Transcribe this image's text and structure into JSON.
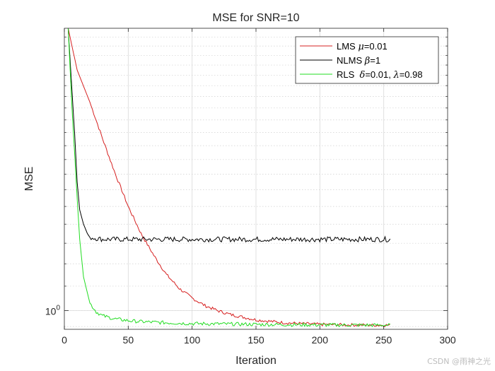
{
  "chart_data": {
    "type": "line",
    "title": "MSE for SNR=10",
    "xlabel": "Iteration",
    "ylabel": "MSE",
    "xlim": [
      0,
      300
    ],
    "x_ticks": [
      0,
      50,
      100,
      150,
      200,
      250,
      300
    ],
    "y_scale": "log",
    "ylim": [
      0.93,
      3.0
    ],
    "y_tick_label": {
      "base": "10",
      "exp": "0",
      "value": 1
    },
    "grid": true,
    "legend_position": "top-right",
    "series": [
      {
        "name": "LMS",
        "legend": {
          "prefix": "LMS ",
          "symbol": "μ",
          "rest": "=0.01"
        },
        "color": "#d62020",
        "x": [
          3,
          10,
          20,
          30,
          40,
          50,
          60,
          70,
          80,
          90,
          100,
          110,
          120,
          130,
          140,
          150,
          160,
          170,
          180,
          190,
          200,
          210,
          220,
          230,
          240,
          255
        ],
        "y": [
          3.0,
          2.55,
          2.25,
          1.95,
          1.7,
          1.5,
          1.35,
          1.24,
          1.15,
          1.09,
          1.05,
          1.02,
          1.0,
          0.985,
          0.975,
          0.965,
          0.96,
          0.955,
          0.952,
          0.95,
          0.948,
          0.947,
          0.946,
          0.946,
          0.945,
          0.945
        ]
      },
      {
        "name": "NLMS",
        "legend": {
          "prefix": "NLMS ",
          "symbol": "β",
          "rest": "=1"
        },
        "color": "#000000",
        "x": [
          3,
          5,
          8,
          10,
          12,
          15,
          18,
          20,
          30,
          50,
          100,
          150,
          200,
          255
        ],
        "y": [
          3.0,
          2.55,
          2.0,
          1.65,
          1.48,
          1.4,
          1.35,
          1.33,
          1.32,
          1.32,
          1.32,
          1.32,
          1.32,
          1.32
        ]
      },
      {
        "name": "RLS",
        "legend": {
          "prefix": "RLS  ",
          "symbol": "δ",
          "rest": "=0.01, ",
          "symbol2": "λ",
          "rest2": "=0.98"
        },
        "color": "#22dd22",
        "x": [
          3,
          6,
          10,
          12,
          15,
          20,
          25,
          30,
          40,
          50,
          60,
          80,
          100,
          150,
          200,
          255
        ],
        "y": [
          3.0,
          2.2,
          1.55,
          1.32,
          1.14,
          1.03,
          0.995,
          0.98,
          0.968,
          0.962,
          0.958,
          0.954,
          0.951,
          0.948,
          0.946,
          0.945
        ]
      }
    ]
  },
  "watermark": "CSDN @雨神之光"
}
